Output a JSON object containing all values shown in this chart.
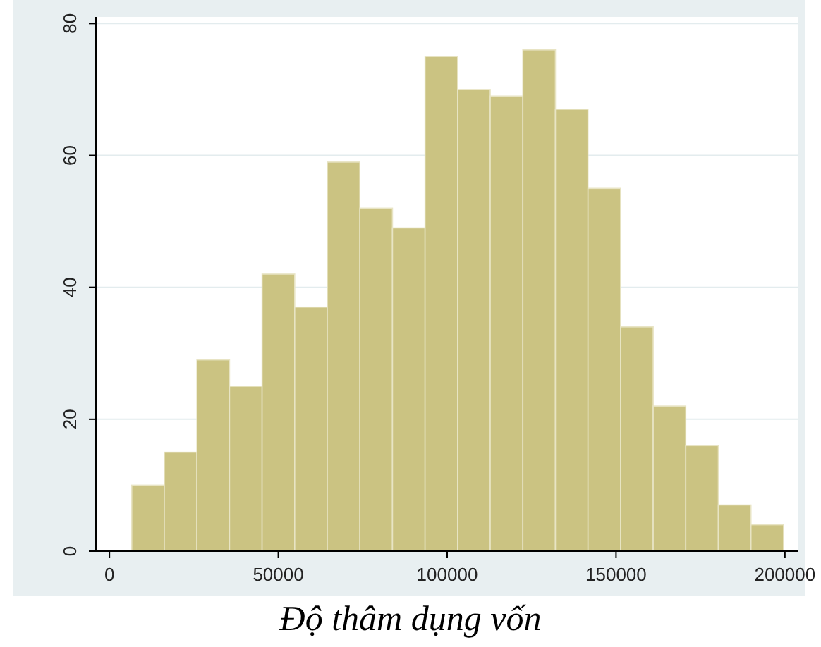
{
  "chart_data": {
    "type": "histogram",
    "xlabel": "Độ thâm dụng vốn",
    "bins": [
      6600,
      16250,
      25900,
      35550,
      45200,
      54850,
      64500,
      74150,
      83800,
      93450,
      103100,
      112750,
      122400,
      132050,
      141700,
      151350,
      161000,
      170650,
      180300,
      189950,
      199600
    ],
    "values": [
      10,
      15,
      29,
      25,
      42,
      37,
      59,
      52,
      49,
      75,
      70,
      69,
      76,
      67,
      55,
      34,
      22,
      16,
      7,
      4
    ],
    "color": "#cbc382",
    "xlim": [
      -4000,
      204000
    ],
    "ylim": [
      0,
      81
    ],
    "xticks": [
      0,
      50000,
      100000,
      150000,
      200000
    ],
    "yticks": [
      0,
      20,
      40,
      60,
      80
    ],
    "grid": "y"
  }
}
